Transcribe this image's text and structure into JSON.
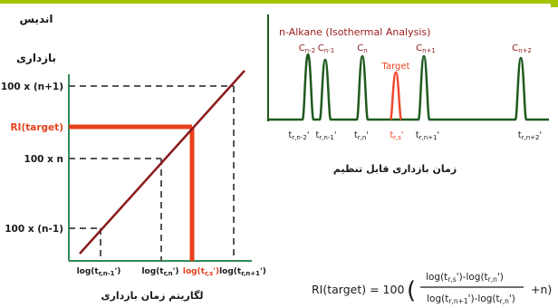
{
  "header": {
    "left_title": "اندیس"
  },
  "left_plot": {
    "y_axis_title": "بازداری",
    "x_axis_title": "لگاریتم زمان بازداری",
    "y_ticks": [
      {
        "label": "100 x (n+1)",
        "color": "#1a1a1a"
      },
      {
        "label": "RI(target)",
        "color": "#e8401c"
      },
      {
        "label": "100 x n",
        "color": "#1a1a1a"
      },
      {
        "label": "100 x (n-1)",
        "color": "#1a1a1a"
      }
    ],
    "x_ticks": [
      {
        "label": "log(t",
        "sub": "r,n-1",
        "tail": "')",
        "color": "#1a1a1a"
      },
      {
        "label": "log(t",
        "sub": "r,n",
        "tail": "')",
        "color": "#1a1a1a"
      },
      {
        "label": "log(t",
        "sub": "r,s",
        "tail": "')",
        "color": "#e8401c"
      },
      {
        "label": "log(t",
        "sub": "r,n+1",
        "tail": "')",
        "color": "#1a1a1a"
      }
    ],
    "line_color": "#8b1a1a",
    "highlight_color": "#e8401c"
  },
  "chromatogram": {
    "title": "n-Alkane (Isothermal Analysis)",
    "target_label": "Target",
    "peak_labels": [
      {
        "base": "C",
        "sub": "n-2"
      },
      {
        "base": "C",
        "sub": "n-1"
      },
      {
        "base": "C",
        "sub": "n"
      },
      {
        "base": "C",
        "sub": "n+1"
      },
      {
        "base": "C",
        "sub": "n+2"
      }
    ],
    "time_labels": [
      {
        "base": "t",
        "sub": "r,n-2",
        "tail": "'",
        "color": "#1a1a1a"
      },
      {
        "base": "t",
        "sub": "r,n-1",
        "tail": "'",
        "color": "#1a1a1a"
      },
      {
        "base": "t",
        "sub": "r,n",
        "tail": "'",
        "color": "#1a1a1a"
      },
      {
        "base": "t",
        "sub": "r,s",
        "tail": "'",
        "color": "#e8401c"
      },
      {
        "base": "t",
        "sub": "r,n+1",
        "tail": "'",
        "color": "#1a1a1a"
      },
      {
        "base": "t",
        "sub": "r,n+2",
        "tail": "'",
        "color": "#1a1a1a"
      }
    ],
    "x_axis_title": "زمان بازداری قابل تنظیم",
    "trace_color": "#1f5a1f",
    "target_color": "#f04a30"
  },
  "formula": {
    "lhs": "RI(target) = 100",
    "num": "log(t",
    "num_sub1": "r,s",
    "num_mid": "')-log(t",
    "num_sub2": "r,n",
    "num_tail": "')",
    "den": "log(t",
    "den_sub1": "r,n+1",
    "den_mid": "')-log(t",
    "den_sub2": "r,n",
    "den_tail": "')",
    "plus": "+n)",
    "open_paren": "(",
    "close_paren": ")"
  }
}
